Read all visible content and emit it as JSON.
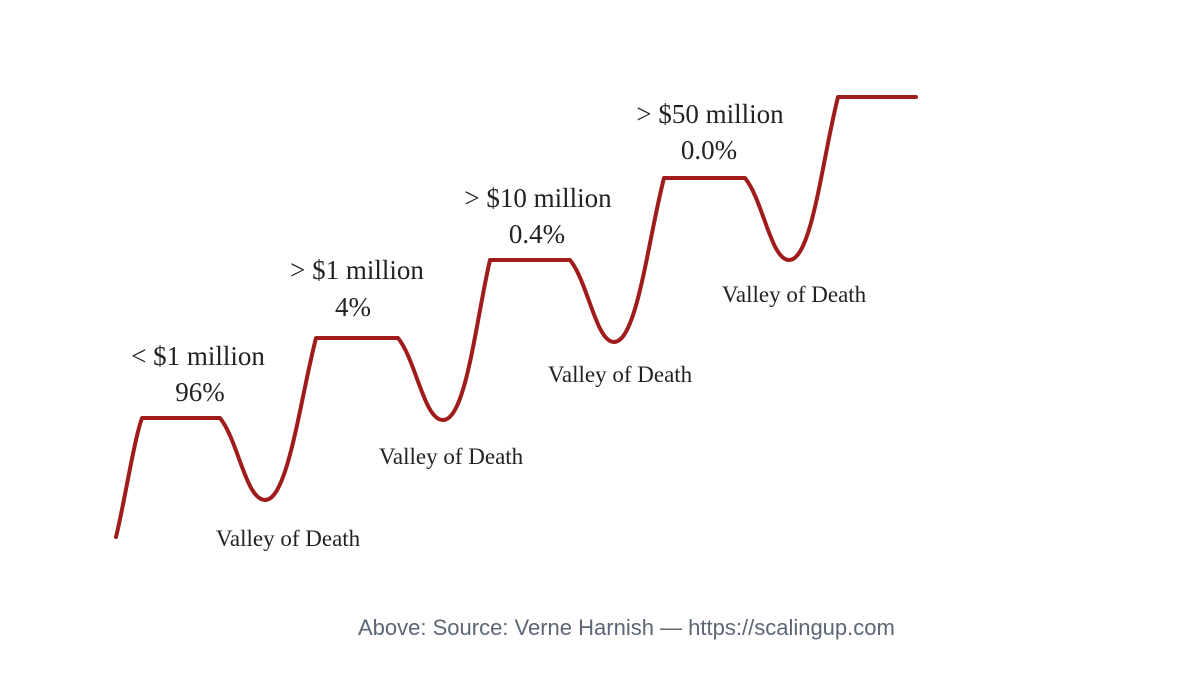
{
  "colors": {
    "curve": "#a01c1c",
    "text": "#222222",
    "caption": "#5c6675"
  },
  "stages": [
    {
      "title": "< $1 million",
      "share": "96%"
    },
    {
      "title": "> $1 million",
      "share": "4%"
    },
    {
      "title": "> $10 million",
      "share": "0.4%"
    },
    {
      "title": "> $50 million",
      "share": "0.0%"
    }
  ],
  "valleys": [
    "Valley of Death",
    "Valley of Death",
    "Valley of Death",
    "Valley of Death"
  ],
  "caption": "Above: Source: Verne Harnish — https://scalingup.com"
}
